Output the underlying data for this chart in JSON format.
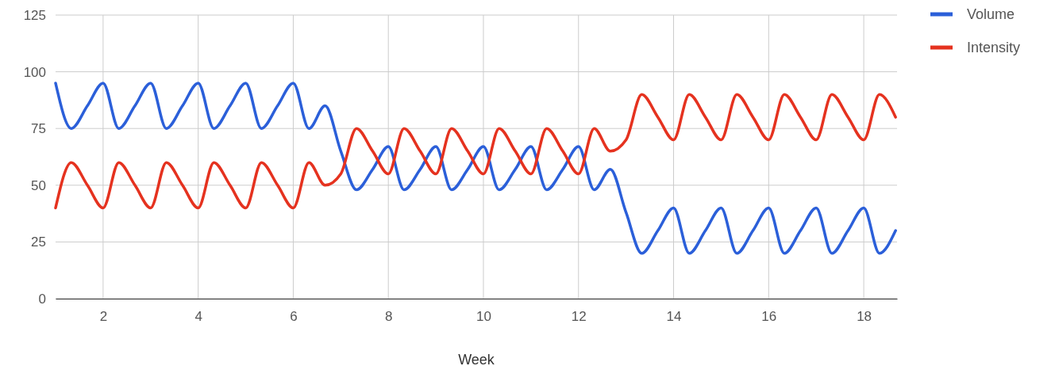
{
  "chart_data": {
    "type": "line",
    "xlabel": "Week",
    "x": [
      1,
      1.33,
      1.67,
      2,
      2.33,
      2.67,
      3,
      3.33,
      3.67,
      4,
      4.33,
      4.67,
      5,
      5.33,
      5.67,
      6,
      6.33,
      6.67,
      7,
      7.33,
      7.67,
      8,
      8.33,
      8.67,
      9,
      9.33,
      9.67,
      10,
      10.33,
      10.67,
      11,
      11.33,
      11.67,
      12,
      12.33,
      12.67,
      13,
      13.33,
      13.67,
      14,
      14.33,
      14.67,
      15,
      15.33,
      15.67,
      16,
      16.33,
      16.67,
      17,
      17.33,
      17.67,
      18,
      18.33,
      18.67
    ],
    "series": [
      {
        "name": "Volume",
        "color": "#2b5fd9",
        "values": [
          95,
          75,
          85,
          95,
          75,
          85,
          95,
          75,
          85,
          95,
          75,
          85,
          95,
          75,
          85,
          95,
          75,
          85,
          65,
          48,
          57,
          67,
          48,
          57,
          67,
          48,
          57,
          67,
          48,
          57,
          67,
          48,
          57,
          67,
          48,
          57,
          38,
          20,
          30,
          40,
          20,
          30,
          40,
          20,
          30,
          40,
          20,
          30,
          40,
          20,
          30,
          40,
          20,
          30
        ]
      },
      {
        "name": "Intensity",
        "color": "#e5321f",
        "values": [
          40,
          60,
          50,
          40,
          60,
          50,
          40,
          60,
          50,
          40,
          60,
          50,
          40,
          60,
          50,
          40,
          60,
          50,
          55,
          75,
          65,
          55,
          75,
          65,
          55,
          75,
          65,
          55,
          75,
          65,
          55,
          75,
          65,
          55,
          75,
          65,
          70,
          90,
          80,
          70,
          90,
          80,
          70,
          90,
          80,
          70,
          90,
          80,
          70,
          90,
          80,
          70,
          90,
          80
        ]
      }
    ],
    "xlim": [
      1,
      18.7
    ],
    "xticks": [
      2,
      4,
      6,
      8,
      10,
      12,
      14,
      16,
      18
    ],
    "ylim": [
      0,
      125
    ],
    "yticks": [
      0,
      25,
      50,
      75,
      100,
      125
    ],
    "grid": true,
    "legend": "right"
  }
}
